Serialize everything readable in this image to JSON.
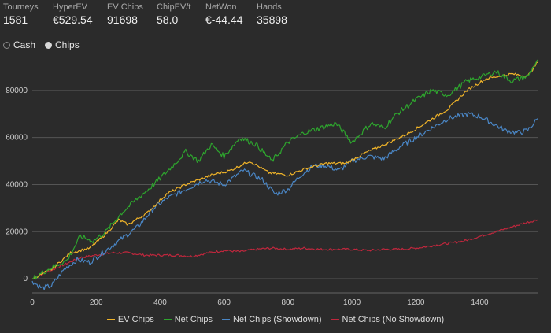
{
  "stats": [
    {
      "label": "Tourneys",
      "value": "1581"
    },
    {
      "label": "HyperEV",
      "value": "€529.54"
    },
    {
      "label": "EV Chips",
      "value": "91698"
    },
    {
      "label": "ChipEV/t",
      "value": "58.0"
    },
    {
      "label": "NetWon",
      "value": "€-44.44"
    },
    {
      "label": "Hands",
      "value": "35898"
    }
  ],
  "radios": [
    {
      "label": "Cash",
      "selected": false
    },
    {
      "label": "Chips",
      "selected": true
    }
  ],
  "chart_data": {
    "type": "line",
    "xlim": [
      0,
      1581
    ],
    "ylim": [
      -6000,
      95000
    ],
    "x_ticks": [
      0,
      200,
      400,
      600,
      800,
      1000,
      1200,
      1400
    ],
    "y_ticks": [
      0,
      20000,
      40000,
      60000,
      80000
    ],
    "grid": "horizontal",
    "legend": "bottom",
    "series": [
      {
        "name": "EV Chips",
        "color": "#f0b429",
        "points": [
          [
            0,
            0
          ],
          [
            60,
            4000
          ],
          [
            120,
            11000
          ],
          [
            180,
            13000
          ],
          [
            230,
            19000
          ],
          [
            270,
            25000
          ],
          [
            300,
            23000
          ],
          [
            360,
            28000
          ],
          [
            420,
            36000
          ],
          [
            480,
            40000
          ],
          [
            560,
            44000
          ],
          [
            620,
            46000
          ],
          [
            680,
            50000
          ],
          [
            740,
            45000
          ],
          [
            800,
            44000
          ],
          [
            860,
            47000
          ],
          [
            920,
            49000
          ],
          [
            980,
            49000
          ],
          [
            1050,
            54000
          ],
          [
            1120,
            58000
          ],
          [
            1180,
            62000
          ],
          [
            1240,
            67000
          ],
          [
            1300,
            72000
          ],
          [
            1360,
            80000
          ],
          [
            1420,
            85000
          ],
          [
            1500,
            87000
          ],
          [
            1550,
            86000
          ],
          [
            1581,
            92000
          ]
        ]
      },
      {
        "name": "Net Chips",
        "color": "#2ea52e",
        "points": [
          [
            0,
            0
          ],
          [
            50,
            4000
          ],
          [
            110,
            8000
          ],
          [
            150,
            18000
          ],
          [
            190,
            16000
          ],
          [
            230,
            20000
          ],
          [
            280,
            28000
          ],
          [
            320,
            33000
          ],
          [
            380,
            40000
          ],
          [
            440,
            48000
          ],
          [
            480,
            54000
          ],
          [
            520,
            50000
          ],
          [
            560,
            57000
          ],
          [
            600,
            52000
          ],
          [
            650,
            60000
          ],
          [
            700,
            57000
          ],
          [
            750,
            50000
          ],
          [
            800,
            58000
          ],
          [
            850,
            62000
          ],
          [
            900,
            64000
          ],
          [
            950,
            66000
          ],
          [
            1000,
            58000
          ],
          [
            1060,
            66000
          ],
          [
            1100,
            64000
          ],
          [
            1140,
            70000
          ],
          [
            1200,
            76000
          ],
          [
            1250,
            80000
          ],
          [
            1300,
            78000
          ],
          [
            1360,
            84000
          ],
          [
            1410,
            86000
          ],
          [
            1450,
            88000
          ],
          [
            1500,
            84000
          ],
          [
            1550,
            86000
          ],
          [
            1581,
            93000
          ]
        ]
      },
      {
        "name": "Net Chips (Showdown)",
        "color": "#4a86c5",
        "points": [
          [
            0,
            -1000
          ],
          [
            30,
            -4000
          ],
          [
            60,
            -3000
          ],
          [
            100,
            4000
          ],
          [
            140,
            8000
          ],
          [
            180,
            7000
          ],
          [
            230,
            12000
          ],
          [
            290,
            18000
          ],
          [
            330,
            22000
          ],
          [
            380,
            30000
          ],
          [
            420,
            34000
          ],
          [
            480,
            38000
          ],
          [
            540,
            42000
          ],
          [
            600,
            40000
          ],
          [
            660,
            46000
          ],
          [
            720,
            42000
          ],
          [
            760,
            36000
          ],
          [
            800,
            38000
          ],
          [
            840,
            44000
          ],
          [
            880,
            48000
          ],
          [
            920,
            48000
          ],
          [
            960,
            46000
          ],
          [
            1000,
            50000
          ],
          [
            1050,
            52000
          ],
          [
            1100,
            51000
          ],
          [
            1150,
            56000
          ],
          [
            1200,
            60000
          ],
          [
            1250,
            64000
          ],
          [
            1300,
            68000
          ],
          [
            1360,
            70000
          ],
          [
            1400,
            69000
          ],
          [
            1440,
            66000
          ],
          [
            1480,
            63000
          ],
          [
            1520,
            62000
          ],
          [
            1550,
            63000
          ],
          [
            1581,
            68000
          ]
        ]
      },
      {
        "name": "Net Chips (No Showdown)",
        "color": "#c0273d",
        "points": [
          [
            0,
            0
          ],
          [
            50,
            3000
          ],
          [
            100,
            6000
          ],
          [
            150,
            9000
          ],
          [
            200,
            10000
          ],
          [
            250,
            11000
          ],
          [
            300,
            11000
          ],
          [
            350,
            10000
          ],
          [
            400,
            10000
          ],
          [
            450,
            10000
          ],
          [
            500,
            9500
          ],
          [
            550,
            11000
          ],
          [
            600,
            12000
          ],
          [
            650,
            11500
          ],
          [
            700,
            12500
          ],
          [
            750,
            13000
          ],
          [
            800,
            12500
          ],
          [
            850,
            13000
          ],
          [
            900,
            12500
          ],
          [
            950,
            12500
          ],
          [
            1000,
            12500
          ],
          [
            1050,
            12000
          ],
          [
            1100,
            12500
          ],
          [
            1150,
            12500
          ],
          [
            1200,
            13000
          ],
          [
            1250,
            14000
          ],
          [
            1300,
            15000
          ],
          [
            1350,
            16000
          ],
          [
            1400,
            18000
          ],
          [
            1450,
            20000
          ],
          [
            1500,
            22000
          ],
          [
            1550,
            24000
          ],
          [
            1581,
            25000
          ]
        ]
      }
    ]
  }
}
